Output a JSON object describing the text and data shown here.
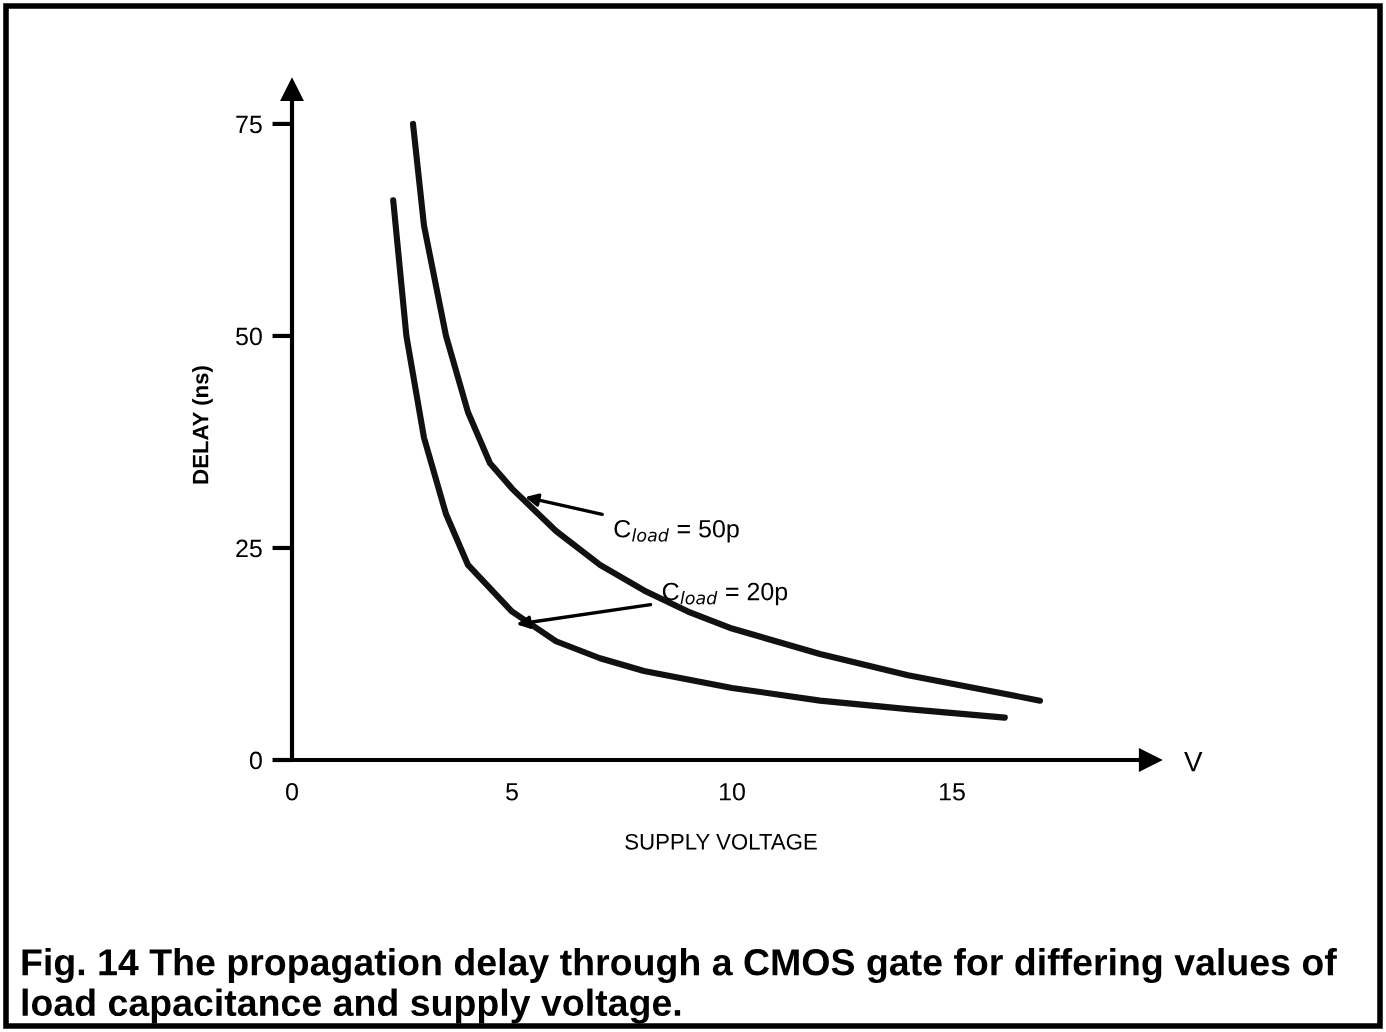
{
  "chart_data": {
    "type": "line",
    "xlabel": "SUPPLY VOLTAGE",
    "ylabel": "DELAY (ns)",
    "xlim": [
      0,
      19.5
    ],
    "ylim": [
      0,
      79
    ],
    "xticks": [
      0,
      5,
      10,
      15
    ],
    "yticks": [
      0,
      25,
      50,
      75
    ],
    "grid": false,
    "legend": false,
    "marker": "none",
    "line_style": "solid",
    "series": [
      {
        "color": "#111111",
        "x": [
          2.75,
          3,
          3.5,
          4,
          4.5,
          5,
          6,
          7,
          8,
          9,
          10,
          12,
          14,
          17
        ],
        "values": [
          75,
          63,
          50,
          41,
          35,
          32,
          27,
          23,
          20,
          17.5,
          15.5,
          12.5,
          10,
          7
        ]
      },
      {
        "color": "#111111",
        "x": [
          2.3,
          2.6,
          3,
          3.5,
          4,
          5,
          6,
          7,
          8,
          10,
          12,
          14,
          16.2
        ],
        "values": [
          66,
          50,
          38,
          29,
          23,
          17.5,
          14,
          12,
          10.5,
          8.5,
          7,
          6,
          5
        ]
      }
    ],
    "annotations": [
      {
        "text": "C$_{load}$ = 50p",
        "x": 5.3,
        "y": 31
      },
      {
        "text": "C$_{load}$ = 20p",
        "x": 5.1,
        "y": 16
      },
      "V",
      "Fig. 14 The propagation delay through a CMOS gate for differing values of load capacitance and supply voltage."
    ]
  }
}
